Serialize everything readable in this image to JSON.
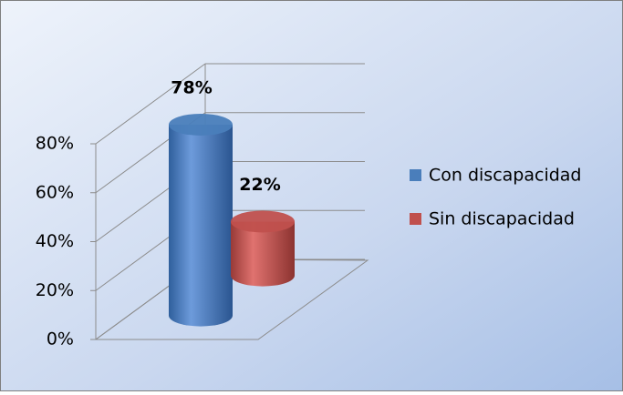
{
  "chart_data": {
    "type": "bar3d_cylinder",
    "categories": [
      null
    ],
    "series": [
      {
        "name": "Con discapacidad",
        "color": "#4a7ebb",
        "values": [
          78
        ],
        "value_labels": [
          "78%"
        ]
      },
      {
        "name": "Sin discapacidad",
        "color": "#c0504d",
        "values": [
          22
        ],
        "value_labels": [
          "22%"
        ]
      }
    ],
    "ylim": [
      0,
      80
    ],
    "yticks": [
      {
        "value": 0,
        "label": "0%"
      },
      {
        "value": 20,
        "label": "20%"
      },
      {
        "value": 40,
        "label": "40%"
      },
      {
        "value": 60,
        "label": "60%"
      },
      {
        "value": 80,
        "label": "80%"
      }
    ],
    "grid": true,
    "legend": "right"
  }
}
